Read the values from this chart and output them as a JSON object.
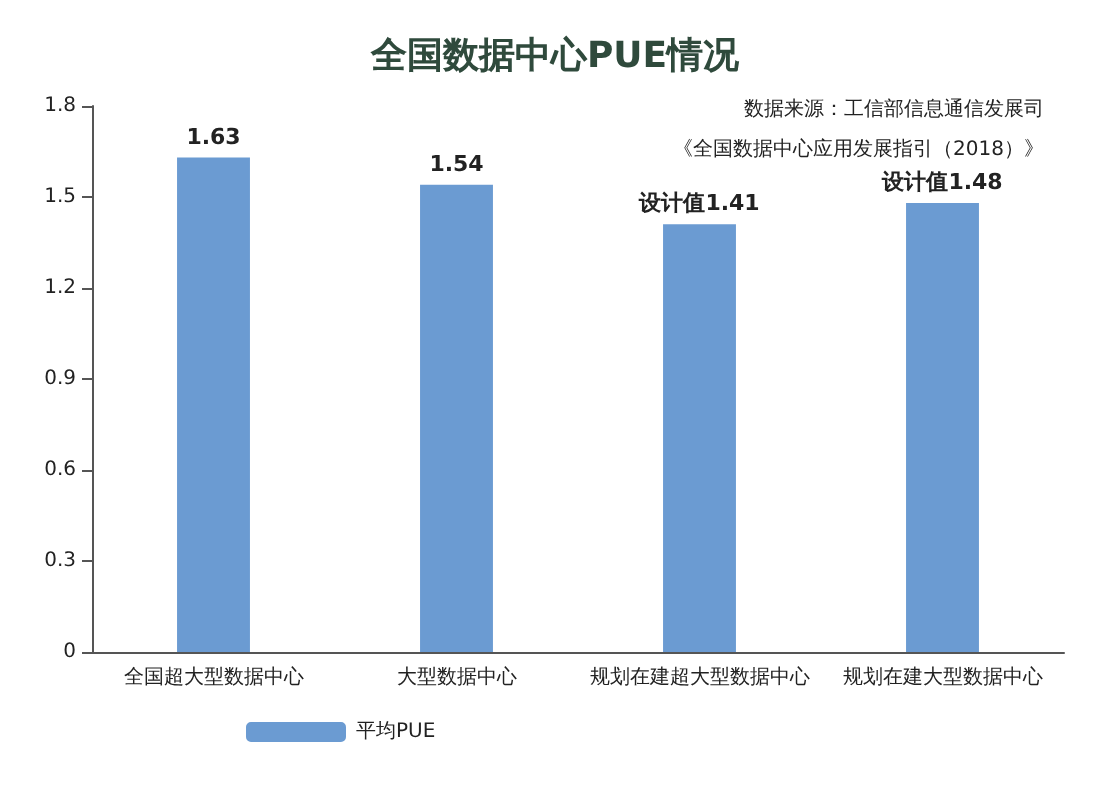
{
  "chart_data": {
    "type": "bar",
    "title": "全国数据中心PUE情况",
    "annotations": [
      "数据来源：工信部信息通信发展司",
      "《全国数据中心应用发展指引（2018）》"
    ],
    "categories": [
      "全国超大型数据中心",
      "大型数据中心",
      "规划在建超大型数据中心",
      "规划在建大型数据中心"
    ],
    "series": [
      {
        "name": "平均PUE",
        "color": "#6b9bd2",
        "values": [
          1.63,
          1.54,
          1.41,
          1.48
        ],
        "value_labels": [
          "1.63",
          "1.54",
          "设计值1.41",
          "设计值1.48"
        ]
      }
    ],
    "ylim": [
      0,
      1.8
    ],
    "yticks": [
      0,
      0.3,
      0.6,
      0.9,
      1.2,
      1.5,
      1.8
    ],
    "grid": false,
    "legend": "bottom left"
  }
}
